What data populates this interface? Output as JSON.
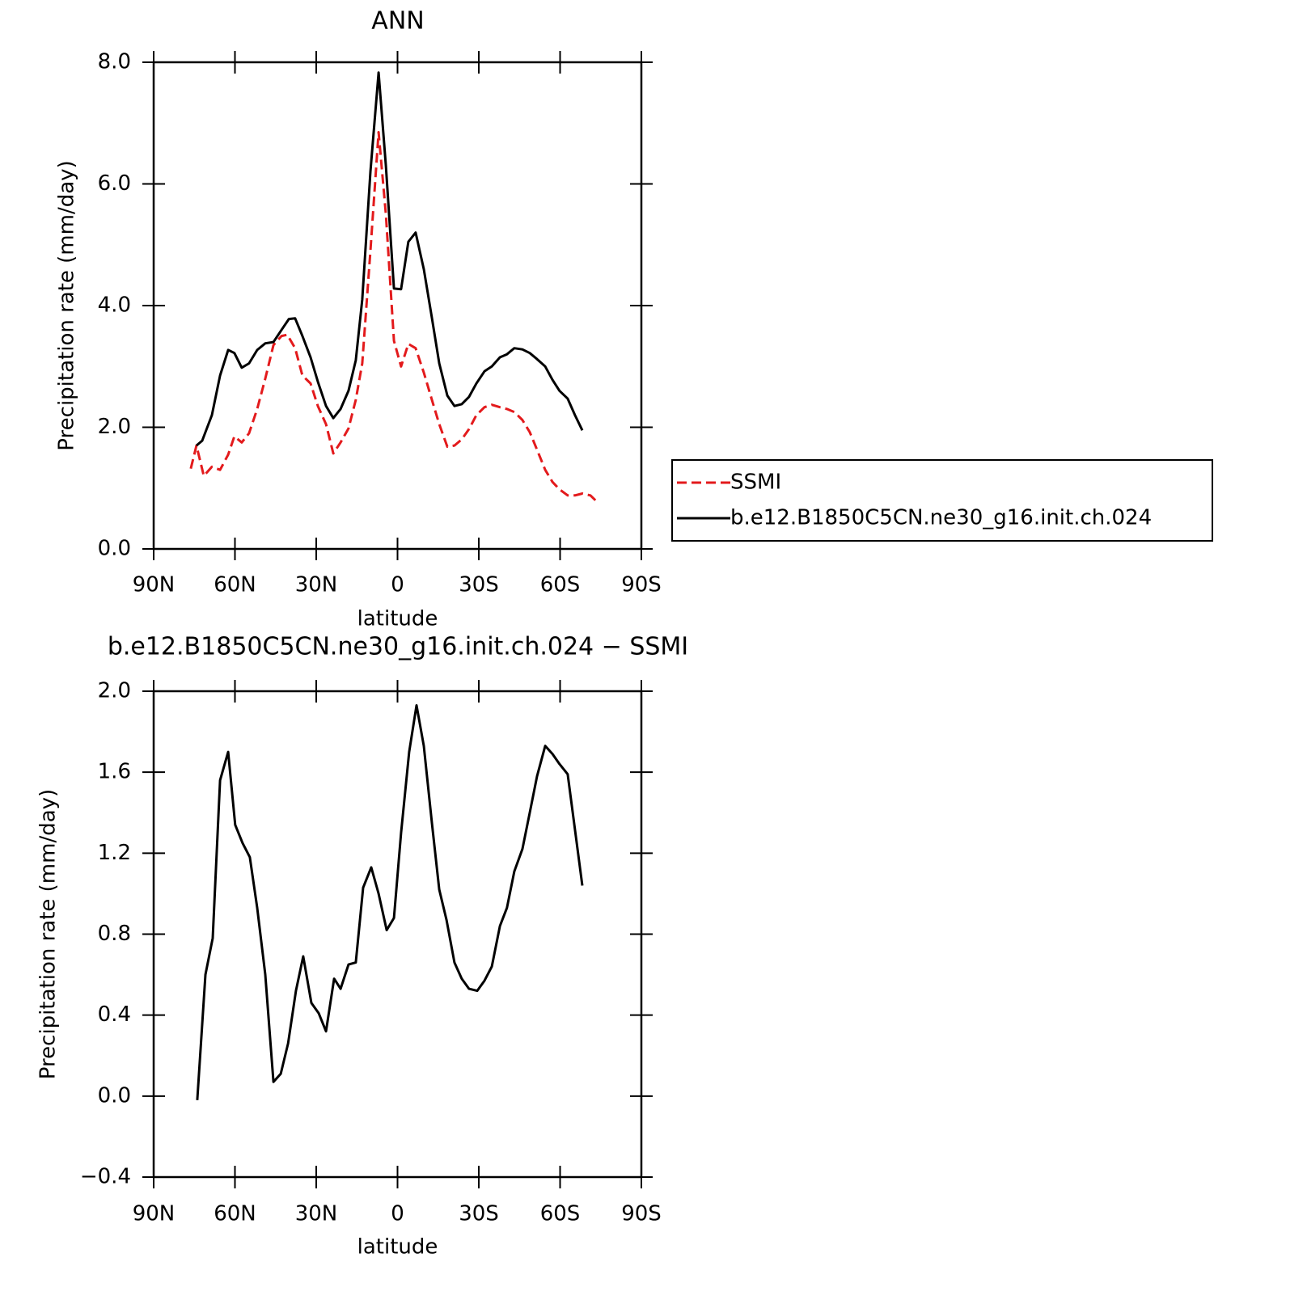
{
  "chart_data": [
    {
      "type": "line",
      "title": "ANN",
      "xlabel": "latitude",
      "ylabel": "Precipitation rate (mm/day)",
      "xlim": [
        90,
        -90
      ],
      "xticks": [
        {
          "value": 90,
          "label": "90N"
        },
        {
          "value": 60,
          "label": "60N"
        },
        {
          "value": 30,
          "label": "30N"
        },
        0,
        {
          "value": -30,
          "label": "30S"
        },
        {
          "value": -60,
          "label": "60S"
        },
        {
          "value": -90,
          "label": "90S"
        }
      ],
      "ylim": [
        0,
        8
      ],
      "yticks": [
        {
          "value": 0,
          "label": "0.0"
        },
        {
          "value": 2,
          "label": "2.0"
        },
        {
          "value": 4,
          "label": "4.0"
        },
        {
          "value": 6,
          "label": "6.0"
        },
        {
          "value": 8,
          "label": "8.0"
        }
      ],
      "legend": "right",
      "series": [
        {
          "name": "SSMI",
          "color": "#e31a1c",
          "dashed": true,
          "x": [
            76.3,
            74.2,
            71.5,
            68.5,
            65.5,
            62.5,
            60.2,
            57.5,
            54.8,
            51.8,
            48.8,
            45.8,
            42.8,
            40.7,
            37.8,
            35.1,
            32.1,
            29.4,
            26.4,
            23.7,
            21.0,
            18.1,
            15.4,
            13.0,
            10.0,
            7.0,
            4.3,
            1.3,
            -1.3,
            -4.0,
            -6.7,
            -9.7,
            -12.7,
            -15.4,
            -18.4,
            -21.0,
            -23.7,
            -26.4,
            -29.1,
            -32.1,
            -34.8,
            -37.8,
            -40.4,
            -43.1,
            -46.1,
            -48.8,
            -51.5,
            -54.5,
            -57.2,
            -59.8,
            -62.8,
            -65.5,
            -68.2,
            -71.2,
            -74.2
          ],
          "values": [
            1.32,
            1.7,
            1.2,
            1.35,
            1.3,
            1.55,
            1.85,
            1.75,
            1.9,
            2.3,
            2.8,
            3.35,
            3.5,
            3.52,
            3.3,
            2.85,
            2.72,
            2.35,
            2.05,
            1.57,
            1.75,
            1.98,
            2.45,
            3.05,
            4.9,
            6.85,
            5.5,
            3.42,
            3.0,
            3.37,
            3.3,
            2.9,
            2.45,
            2.05,
            1.68,
            1.7,
            1.8,
            1.97,
            2.2,
            2.33,
            2.37,
            2.33,
            2.3,
            2.25,
            2.12,
            1.92,
            1.63,
            1.3,
            1.1,
            0.98,
            0.88,
            0.88,
            0.91,
            0.88,
            0.75
          ]
        },
        {
          "name": "b.e12.B1850C5CN.ne30_g16.init.ch.024",
          "color": "#000000",
          "dashed": false,
          "x": [
            74.2,
            72.1,
            68.5,
            65.5,
            62.5,
            60.2,
            57.5,
            54.8,
            51.8,
            48.8,
            45.8,
            42.8,
            40.1,
            37.8,
            35.1,
            32.1,
            29.4,
            26.4,
            23.7,
            21.0,
            18.1,
            15.4,
            13.0,
            10.0,
            7.0,
            4.3,
            1.3,
            -1.3,
            -4.0,
            -6.7,
            -9.7,
            -12.7,
            -15.4,
            -18.4,
            -21.0,
            -23.7,
            -26.4,
            -29.1,
            -32.1,
            -34.8,
            -37.8,
            -40.4,
            -43.1,
            -46.1,
            -48.8,
            -51.5,
            -54.5,
            -57.2,
            -59.8,
            -62.8,
            -65.5,
            -68.2
          ],
          "values": [
            1.7,
            1.78,
            2.2,
            2.85,
            3.27,
            3.22,
            2.98,
            3.05,
            3.27,
            3.38,
            3.4,
            3.6,
            3.78,
            3.79,
            3.5,
            3.15,
            2.75,
            2.35,
            2.15,
            2.3,
            2.6,
            3.1,
            4.1,
            6.2,
            7.83,
            6.3,
            4.28,
            4.27,
            5.05,
            5.2,
            4.6,
            3.8,
            3.05,
            2.52,
            2.35,
            2.38,
            2.5,
            2.72,
            2.92,
            3.0,
            3.15,
            3.2,
            3.3,
            3.28,
            3.22,
            3.12,
            3.0,
            2.78,
            2.6,
            2.47,
            2.2,
            1.95
          ]
        }
      ]
    },
    {
      "type": "line",
      "title": "b.e12.B1850C5CN.ne30_g16.init.ch.024 − SSMI",
      "xlabel": "latitude",
      "ylabel": "Precipitation rate (mm/day)",
      "xlim": [
        90,
        -90
      ],
      "xticks": [
        {
          "value": 90,
          "label": "90N"
        },
        {
          "value": 60,
          "label": "60N"
        },
        {
          "value": 30,
          "label": "30N"
        },
        0,
        {
          "value": -30,
          "label": "30S"
        },
        {
          "value": -60,
          "label": "60S"
        },
        {
          "value": -90,
          "label": "90S"
        }
      ],
      "ylim": [
        -0.4,
        2.0
      ],
      "yticks": [
        {
          "value": -0.4,
          "label": "−0.4"
        },
        {
          "value": 0,
          "label": "0.0"
        },
        0.4,
        0.8,
        1.2,
        1.6,
        {
          "value": 2,
          "label": "2.0"
        }
      ],
      "series": [
        {
          "color": "#000000",
          "dashed": false,
          "x": [
            73.9,
            70.9,
            68.2,
            65.5,
            62.5,
            59.9,
            57.2,
            54.5,
            51.8,
            48.8,
            45.8,
            43.1,
            40.4,
            37.5,
            34.8,
            31.8,
            29.1,
            26.4,
            23.4,
            21.0,
            18.1,
            15.4,
            12.7,
            9.7,
            7.0,
            4.0,
            1.3,
            -1.3,
            -4.3,
            -7.0,
            -9.7,
            -12.7,
            -15.4,
            -18.1,
            -21.0,
            -23.7,
            -26.4,
            -29.4,
            -32.1,
            -34.8,
            -37.8,
            -40.4,
            -43.1,
            -46.1,
            -48.8,
            -51.5,
            -54.5,
            -57.2,
            -59.8,
            -62.8,
            -68.2
          ],
          "values": [
            -0.02,
            0.6,
            0.78,
            1.56,
            1.7,
            1.34,
            1.25,
            1.18,
            0.93,
            0.6,
            0.07,
            0.11,
            0.26,
            0.52,
            0.69,
            0.46,
            0.41,
            0.32,
            0.58,
            0.53,
            0.65,
            0.66,
            1.03,
            1.13,
            1.0,
            0.82,
            0.88,
            1.3,
            1.7,
            1.93,
            1.73,
            1.35,
            1.02,
            0.87,
            0.66,
            0.58,
            0.53,
            0.52,
            0.57,
            0.64,
            0.84,
            0.93,
            1.11,
            1.22,
            1.4,
            1.58,
            1.73,
            1.69,
            1.64,
            1.59,
            1.04
          ]
        }
      ]
    }
  ]
}
